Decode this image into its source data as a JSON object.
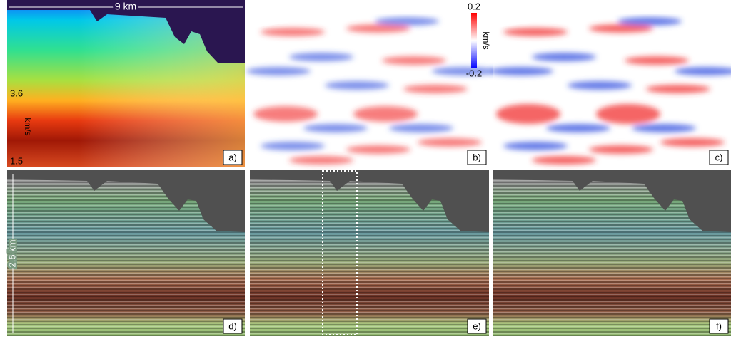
{
  "scale_bars": {
    "horizontal": "9 km",
    "vertical": "2.6 km"
  },
  "colorbar_velocity": {
    "max": "3.6",
    "unit": "km/s",
    "min": "1.5"
  },
  "colorbar_update": {
    "max": "0.2",
    "unit": "km/s",
    "min": "-0.2"
  },
  "panels": [
    {
      "label": "a)"
    },
    {
      "label": "b)"
    },
    {
      "label": "c)"
    },
    {
      "label": "d)"
    },
    {
      "label": "e)"
    },
    {
      "label": "f)"
    }
  ]
}
